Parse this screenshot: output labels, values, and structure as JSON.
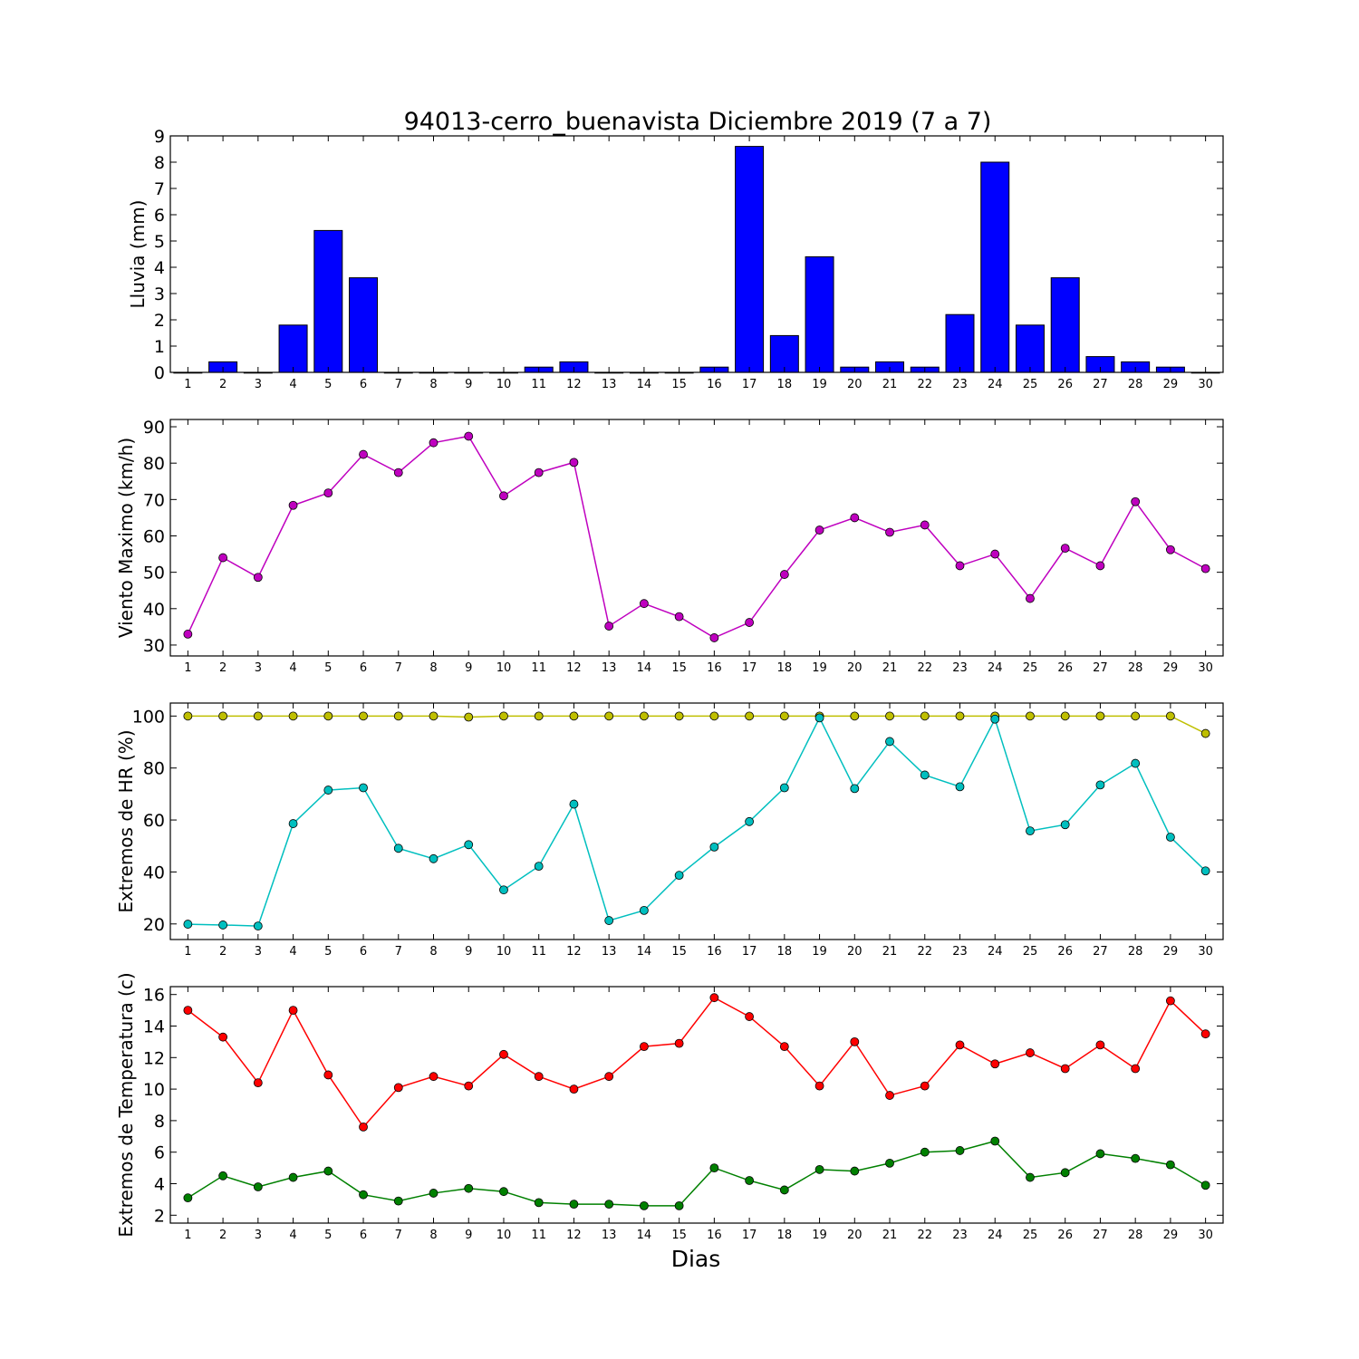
{
  "title": "94013-cerro_buenavista Diciembre 2019  (7 a 7)",
  "xlabel": "Dias",
  "chart_data": [
    {
      "type": "bar",
      "ylabel": "Lluvia (mm)",
      "ylim": [
        0,
        9
      ],
      "yticks": [
        0,
        1,
        2,
        3,
        4,
        5,
        6,
        7,
        8,
        9
      ],
      "categories": [
        1,
        2,
        3,
        4,
        5,
        6,
        7,
        8,
        9,
        10,
        11,
        12,
        13,
        14,
        15,
        16,
        17,
        18,
        19,
        20,
        21,
        22,
        23,
        24,
        25,
        26,
        27,
        28,
        29,
        30
      ],
      "series": [
        {
          "color": "#0000ff",
          "values": [
            0,
            0.4,
            0,
            1.8,
            5.4,
            3.6,
            0,
            0,
            0,
            0,
            0.2,
            0.4,
            0,
            0,
            0,
            0.2,
            8.6,
            1.4,
            4.4,
            0.2,
            0.4,
            0.2,
            2.2,
            8.0,
            1.8,
            3.6,
            0.6,
            0.4,
            0.2,
            0
          ]
        }
      ]
    },
    {
      "type": "line",
      "ylabel": "Viento Maximo (km/h)",
      "ylim": [
        27,
        92
      ],
      "yticks": [
        30,
        40,
        50,
        60,
        70,
        80,
        90
      ],
      "categories": [
        1,
        2,
        3,
        4,
        5,
        6,
        7,
        8,
        9,
        10,
        11,
        12,
        13,
        14,
        15,
        16,
        17,
        18,
        19,
        20,
        21,
        22,
        23,
        24,
        25,
        26,
        27,
        28,
        29,
        30
      ],
      "series": [
        {
          "color": "#bf00bf",
          "values": [
            33.0,
            54.0,
            48.6,
            68.4,
            71.8,
            82.4,
            77.4,
            85.6,
            87.4,
            71.0,
            77.4,
            80.2,
            35.2,
            41.4,
            37.8,
            32.0,
            36.2,
            49.4,
            61.6,
            65.0,
            61.0,
            63.0,
            51.8,
            55.0,
            42.8,
            56.6,
            51.8,
            69.4,
            56.2,
            51.0
          ]
        }
      ]
    },
    {
      "type": "line",
      "ylabel": "Extremos de HR (%)",
      "ylim": [
        14,
        105
      ],
      "yticks": [
        20,
        40,
        60,
        80,
        100
      ],
      "categories": [
        1,
        2,
        3,
        4,
        5,
        6,
        7,
        8,
        9,
        10,
        11,
        12,
        13,
        14,
        15,
        16,
        17,
        18,
        19,
        20,
        21,
        22,
        23,
        24,
        25,
        26,
        27,
        28,
        29,
        30
      ],
      "series": [
        {
          "color": "#bfbf00",
          "values": [
            100,
            100,
            100,
            100,
            100,
            100,
            100,
            100,
            99.6,
            100,
            100,
            100,
            100,
            100,
            100,
            100,
            100,
            100,
            100,
            100,
            100,
            100,
            100,
            100,
            100,
            100,
            100,
            100,
            100,
            93.3
          ]
        },
        {
          "color": "#00bfbf",
          "values": [
            19.9,
            19.6,
            19.2,
            58.6,
            71.5,
            72.4,
            49.1,
            45.1,
            50.5,
            33.1,
            42.2,
            66.1,
            21.3,
            25.2,
            38.7,
            49.6,
            59.4,
            72.4,
            99.3,
            72.1,
            90.2,
            77.3,
            72.8,
            98.8,
            55.8,
            58.2,
            73.5,
            81.8,
            53.4,
            40.4
          ]
        }
      ]
    },
    {
      "type": "line",
      "ylabel": "Extremos de Temperatura (c)",
      "ylim": [
        1.5,
        16.5
      ],
      "yticks": [
        2,
        4,
        6,
        8,
        10,
        12,
        14,
        16
      ],
      "categories": [
        1,
        2,
        3,
        4,
        5,
        6,
        7,
        8,
        9,
        10,
        11,
        12,
        13,
        14,
        15,
        16,
        17,
        18,
        19,
        20,
        21,
        22,
        23,
        24,
        25,
        26,
        27,
        28,
        29,
        30
      ],
      "series": [
        {
          "color": "#ff0000",
          "values": [
            15.0,
            13.3,
            10.4,
            15.0,
            10.9,
            7.6,
            10.1,
            10.8,
            10.2,
            12.2,
            10.8,
            10.0,
            10.8,
            12.7,
            12.9,
            15.8,
            14.6,
            12.7,
            10.2,
            13.0,
            9.6,
            10.2,
            12.8,
            11.6,
            12.3,
            11.3,
            12.8,
            11.3,
            15.6,
            13.5
          ]
        },
        {
          "color": "#008000",
          "values": [
            3.1,
            4.5,
            3.8,
            4.4,
            4.8,
            3.3,
            2.9,
            3.4,
            3.7,
            3.5,
            2.8,
            2.7,
            2.7,
            2.6,
            2.6,
            5.0,
            4.2,
            3.6,
            4.9,
            4.8,
            5.3,
            6.0,
            6.1,
            6.7,
            4.4,
            4.7,
            5.9,
            5.6,
            5.2,
            3.9
          ]
        }
      ]
    }
  ]
}
